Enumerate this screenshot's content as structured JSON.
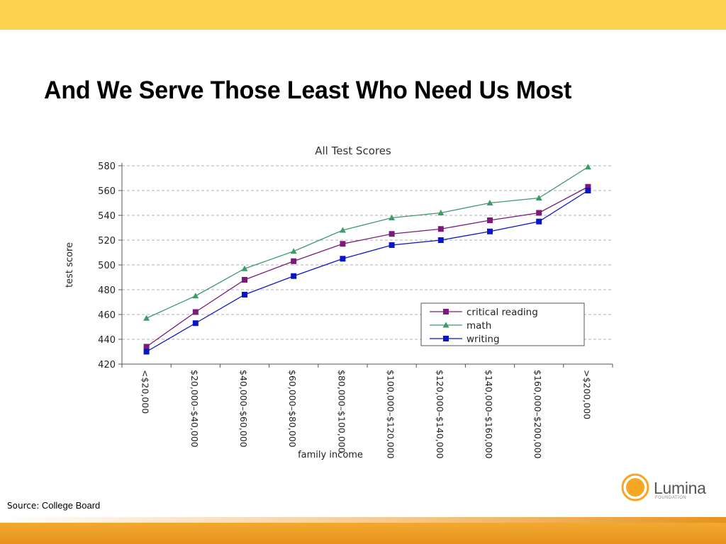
{
  "slide": {
    "title": "And We Serve Those Least Who Need Us Most",
    "source_label": "Source:",
    "source_value": "College Board"
  },
  "logo": {
    "name": "Lumina",
    "sub": "FOUNDATION"
  },
  "colors": {
    "top_band": "#fcd24d",
    "bottom_band": "#e8921c",
    "critical_reading": "#7b1a7b",
    "math": "#3f9a6a",
    "writing": "#0a14c8"
  },
  "chart_data": {
    "type": "line",
    "title": "All Test Scores",
    "xlabel": "family income",
    "ylabel": "test score",
    "ylim": [
      420,
      580
    ],
    "yticks": [
      420,
      440,
      460,
      480,
      500,
      520,
      540,
      560,
      580
    ],
    "grid": "horizontal dashed",
    "legend_position": "bottom-right",
    "categories": [
      "<$20,000",
      "$20,000–$40,000",
      "$40,000–$60,000",
      "$60,000–$80,000",
      "$80,000–$100,000",
      "$100,000–$120,000",
      "$120,000–$140,000",
      "$140,000–$160,000",
      "$160,000–$200,000",
      ">$200,000"
    ],
    "series": [
      {
        "name": "critical reading",
        "marker": "square",
        "color": "#7b1a7b",
        "values": [
          434,
          462,
          488,
          503,
          517,
          525,
          529,
          536,
          542,
          563
        ]
      },
      {
        "name": "math",
        "marker": "triangle",
        "color": "#3f9a6a",
        "values": [
          457,
          475,
          497,
          511,
          528,
          538,
          542,
          550,
          554,
          579
        ]
      },
      {
        "name": "writing",
        "marker": "square",
        "color": "#0a14c8",
        "values": [
          430,
          453,
          476,
          491,
          505,
          516,
          520,
          527,
          535,
          560
        ]
      }
    ]
  }
}
